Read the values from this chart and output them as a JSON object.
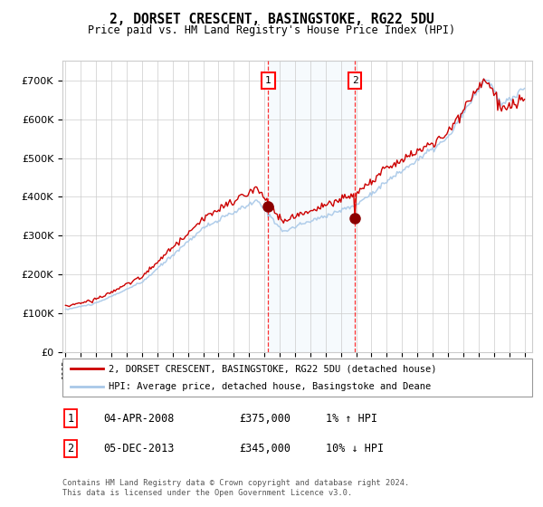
{
  "title": "2, DORSET CRESCENT, BASINGSTOKE, RG22 5DU",
  "subtitle": "Price paid vs. HM Land Registry's House Price Index (HPI)",
  "legend_line1": "2, DORSET CRESCENT, BASINGSTOKE, RG22 5DU (detached house)",
  "legend_line2": "HPI: Average price, detached house, Basingstoke and Deane",
  "transaction1_label": "1",
  "transaction1_date": "04-APR-2008",
  "transaction1_price": "£375,000",
  "transaction1_hpi": "1% ↑ HPI",
  "transaction2_label": "2",
  "transaction2_date": "05-DEC-2013",
  "transaction2_price": "£345,000",
  "transaction2_hpi": "10% ↓ HPI",
  "footnote": "Contains HM Land Registry data © Crown copyright and database right 2024.\nThis data is licensed under the Open Government Licence v3.0.",
  "hpi_color": "#a8c8e8",
  "price_color": "#cc0000",
  "background_color": "#ffffff",
  "grid_color": "#cccccc",
  "marker1_year": 2008.25,
  "marker1_price": 375000,
  "marker2_year": 2013.92,
  "marker2_price": 345000,
  "ylim_min": 0,
  "ylim_max": 750000,
  "xlim_min": 1994.8,
  "xlim_max": 2025.5
}
